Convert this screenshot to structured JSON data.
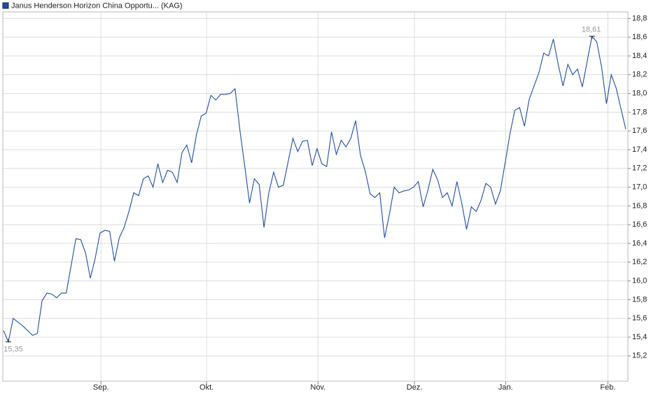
{
  "chart_data": {
    "type": "line",
    "series": [
      {
        "name": "Janus Henderson Horizon China Opportu... (KAG)",
        "color": "#1f4e9c",
        "values": [
          15.47,
          15.35,
          15.6,
          15.56,
          15.52,
          15.47,
          15.42,
          15.44,
          15.79,
          15.87,
          15.86,
          15.82,
          15.87,
          15.87,
          16.16,
          16.45,
          16.44,
          16.3,
          16.03,
          16.24,
          16.51,
          16.54,
          16.53,
          16.21,
          16.46,
          16.57,
          16.74,
          16.94,
          16.91,
          17.09,
          17.12,
          17.0,
          17.25,
          17.05,
          17.18,
          17.16,
          17.05,
          17.37,
          17.45,
          17.26,
          17.56,
          17.76,
          17.79,
          17.98,
          17.93,
          17.99,
          17.99,
          18.0,
          18.05,
          17.61,
          17.23,
          16.83,
          17.09,
          17.03,
          16.57,
          16.94,
          17.16,
          17.0,
          17.02,
          17.27,
          17.52,
          17.38,
          17.49,
          17.5,
          17.23,
          17.41,
          17.25,
          17.22,
          17.59,
          17.35,
          17.5,
          17.43,
          17.52,
          17.71,
          17.34,
          17.17,
          16.93,
          16.89,
          16.94,
          16.46,
          16.71,
          17.0,
          16.94,
          16.96,
          16.97,
          17.0,
          17.06,
          16.79,
          16.97,
          17.19,
          17.08,
          16.89,
          16.94,
          16.8,
          17.06,
          16.83,
          16.55,
          16.79,
          16.74,
          16.86,
          17.04,
          17.0,
          16.82,
          16.96,
          17.26,
          17.57,
          17.82,
          17.85,
          17.65,
          17.94,
          18.08,
          18.22,
          18.43,
          18.4,
          18.58,
          18.31,
          18.08,
          18.31,
          18.2,
          18.26,
          18.07,
          18.34,
          18.61,
          18.55,
          18.28,
          17.89,
          18.2,
          18.06,
          17.84,
          17.62
        ]
      }
    ],
    "x": [
      0,
      1,
      2,
      3,
      4,
      5,
      6,
      7,
      8,
      9,
      10,
      11,
      12,
      13,
      14,
      15,
      16,
      17,
      18,
      19,
      20,
      21,
      22,
      23,
      24,
      25,
      26,
      27,
      28,
      29,
      30,
      31,
      32,
      33,
      34,
      35,
      36,
      37,
      38,
      39,
      40,
      41,
      42,
      43,
      44,
      45,
      46,
      47,
      48,
      49,
      50,
      51,
      52,
      53,
      54,
      55,
      56,
      57,
      58,
      59,
      60,
      61,
      62,
      63,
      64,
      65,
      66,
      67,
      68,
      69,
      70,
      71,
      72,
      73,
      74,
      75,
      76,
      77,
      78,
      79,
      80,
      81,
      82,
      83,
      84,
      85,
      86,
      87,
      88,
      89,
      90,
      91,
      92,
      93,
      94,
      95,
      96,
      97,
      98,
      99,
      100,
      101,
      102,
      103,
      104,
      105,
      106,
      107,
      108,
      109,
      110,
      111,
      112,
      113,
      114,
      115,
      116,
      117,
      118,
      119,
      120,
      121,
      122,
      123,
      124,
      125,
      126,
      127,
      128,
      129
    ],
    "xlim": [
      -0.15,
      129.45
    ],
    "xticks": [
      {
        "value": 20.2,
        "label": "Sep."
      },
      {
        "value": 42.1,
        "label": "Okt."
      },
      {
        "value": 65.2,
        "label": "Nov."
      },
      {
        "value": 85.2,
        "label": "Dez."
      },
      {
        "value": 104.1,
        "label": "Jan."
      },
      {
        "value": 125.3,
        "label": "Feb."
      }
    ],
    "ylim": [
      14.93,
      18.87
    ],
    "yticks": [
      {
        "value": 15.2,
        "label": "15,2"
      },
      {
        "value": 15.4,
        "label": "15,4"
      },
      {
        "value": 15.6,
        "label": "15,6"
      },
      {
        "value": 15.8,
        "label": "15,8"
      },
      {
        "value": 16.0,
        "label": "16,0"
      },
      {
        "value": 16.2,
        "label": "16,2"
      },
      {
        "value": 16.4,
        "label": "16,4"
      },
      {
        "value": 16.6,
        "label": "16,6"
      },
      {
        "value": 16.8,
        "label": "16,8"
      },
      {
        "value": 17.0,
        "label": "17,0"
      },
      {
        "value": 17.2,
        "label": "17,2"
      },
      {
        "value": 17.4,
        "label": "17,4"
      },
      {
        "value": 17.6,
        "label": "17,6"
      },
      {
        "value": 17.8,
        "label": "17,8"
      },
      {
        "value": 18.0,
        "label": "18,0"
      },
      {
        "value": 18.2,
        "label": "18,2"
      },
      {
        "value": 18.4,
        "label": "18,4"
      },
      {
        "value": 18.6,
        "label": "18,6"
      },
      {
        "value": 18.8,
        "label": "18,8"
      }
    ],
    "annotations": [
      {
        "text": "15,35",
        "x": 1,
        "y": 15.35
      },
      {
        "text": "18,61",
        "x": 122,
        "y": 18.61
      }
    ],
    "grid": true
  }
}
